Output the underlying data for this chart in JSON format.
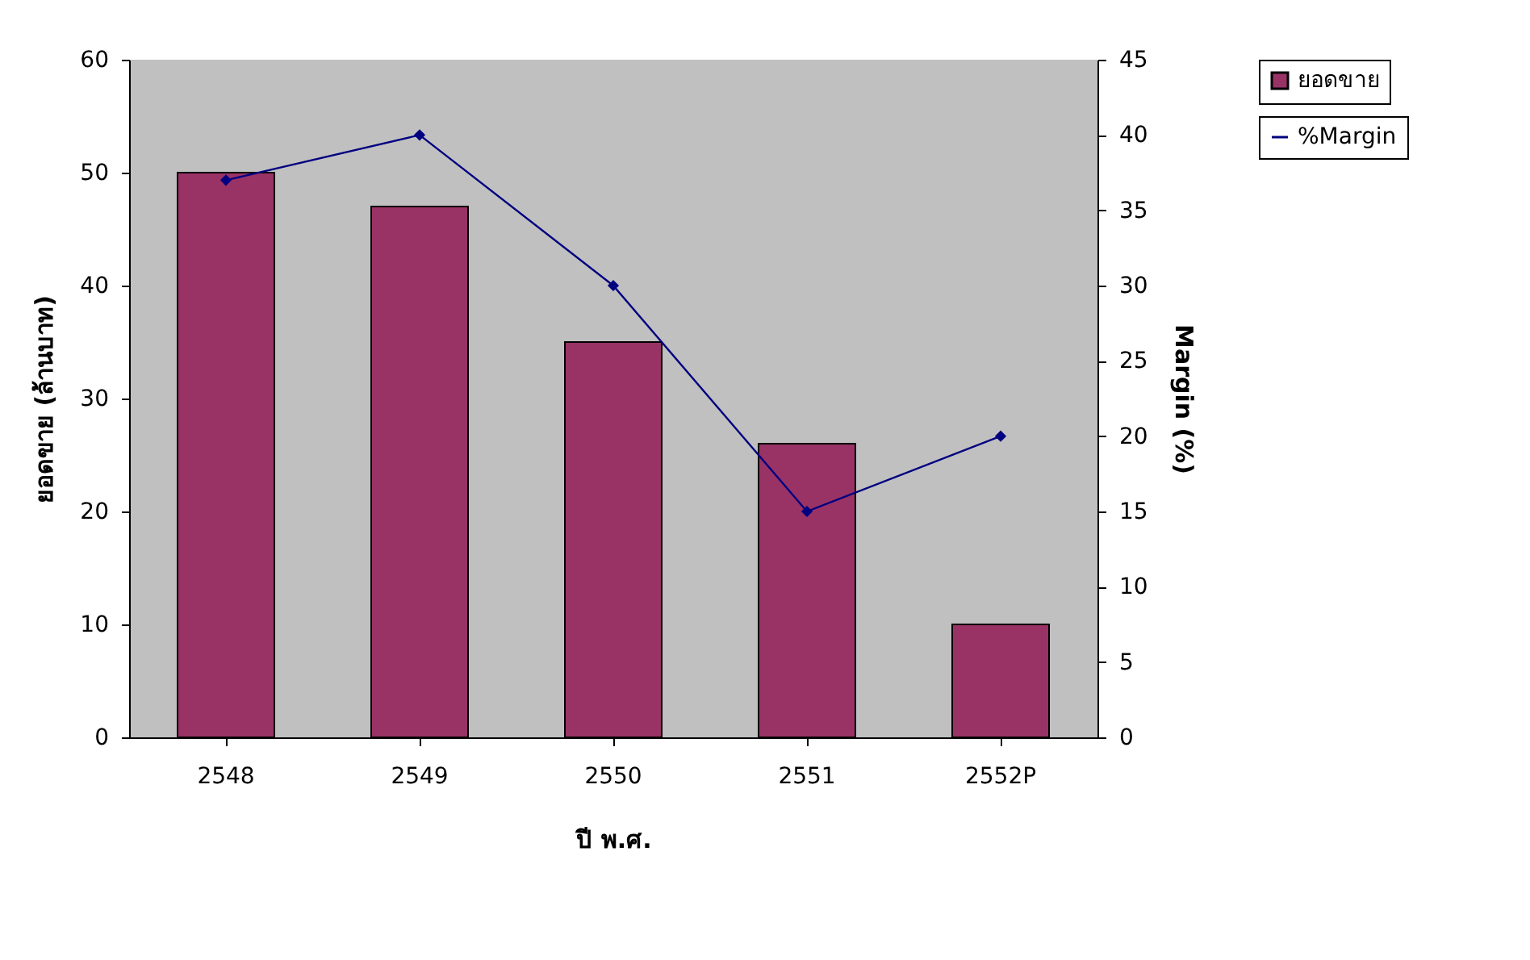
{
  "chart_data": {
    "type": "bar",
    "xlabel": "ปี พ.ศ.",
    "ylabel": "ยอดขาย (ล้านบาท)",
    "y2label": "Margin (%)",
    "categories": [
      "2548",
      "2549",
      "2550",
      "2551",
      "2552P"
    ],
    "series": [
      {
        "name": "ยอดขาย",
        "color": "#993366",
        "values": [
          50,
          47,
          35,
          26,
          10
        ]
      },
      {
        "name": "%Margin",
        "type": "line",
        "axis": "y2",
        "color": "#000080",
        "marker": "diamond",
        "line_style": "solid",
        "values": [
          37,
          40,
          30,
          15,
          20
        ]
      }
    ],
    "ylim": [
      0,
      60
    ],
    "yticks": [
      0,
      10,
      20,
      30,
      40,
      50,
      60
    ],
    "y2lim": [
      0,
      45
    ],
    "y2ticks": [
      0,
      5,
      10,
      15,
      20,
      25,
      30,
      35,
      40,
      45
    ],
    "grid": false,
    "legend": "right"
  }
}
